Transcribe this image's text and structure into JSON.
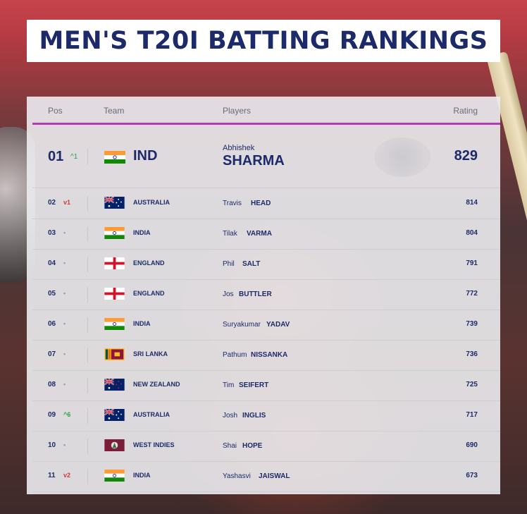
{
  "title": "MEN'S T20I BATTING RANKINGS",
  "columns": {
    "pos": "Pos",
    "team": "Team",
    "players": "Players",
    "rating": "Rating"
  },
  "top": {
    "pos": "01",
    "change": "^1",
    "change_dir": "up",
    "team": "IND",
    "flag": "india",
    "first": "Abhishek",
    "last": "SHARMA",
    "rating": "829"
  },
  "rows": [
    {
      "pos": "02",
      "change": "v1",
      "change_dir": "down",
      "team": "AUSTRALIA",
      "flag": "australia",
      "first": "Travis",
      "last": "HEAD",
      "rating": "814"
    },
    {
      "pos": "03",
      "change": "•",
      "change_dir": "same",
      "team": "INDIA",
      "flag": "india",
      "first": "Tilak",
      "last": "VARMA",
      "rating": "804"
    },
    {
      "pos": "04",
      "change": "•",
      "change_dir": "same",
      "team": "ENGLAND",
      "flag": "england",
      "first": "Phil",
      "last": "SALT",
      "rating": "791"
    },
    {
      "pos": "05",
      "change": "•",
      "change_dir": "same",
      "team": "ENGLAND",
      "flag": "england",
      "first": "Jos",
      "last": "BUTTLER",
      "rating": "772"
    },
    {
      "pos": "06",
      "change": "•",
      "change_dir": "same",
      "team": "INDIA",
      "flag": "india",
      "first": "Suryakumar",
      "last": "YADAV",
      "rating": "739"
    },
    {
      "pos": "07",
      "change": "•",
      "change_dir": "same",
      "team": "SRI LANKA",
      "flag": "sri-lanka",
      "first": "Pathum",
      "last": "NISSANKA",
      "rating": "736"
    },
    {
      "pos": "08",
      "change": "•",
      "change_dir": "same",
      "team": "NEW ZEALAND",
      "flag": "new-zealand",
      "first": "Tim",
      "last": "SEIFERT",
      "rating": "725"
    },
    {
      "pos": "09",
      "change": "^6",
      "change_dir": "up",
      "team": "AUSTRALIA",
      "flag": "australia",
      "first": "Josh",
      "last": "INGLIS",
      "rating": "717"
    },
    {
      "pos": "10",
      "change": "•",
      "change_dir": "same",
      "team": "WEST INDIES",
      "flag": "west-indies",
      "first": "Shai",
      "last": "HOPE",
      "rating": "690"
    },
    {
      "pos": "11",
      "change": "v2",
      "change_dir": "down",
      "team": "INDIA",
      "flag": "india",
      "first": "Yashasvi",
      "last": "JAISWAL",
      "rating": "673"
    }
  ]
}
